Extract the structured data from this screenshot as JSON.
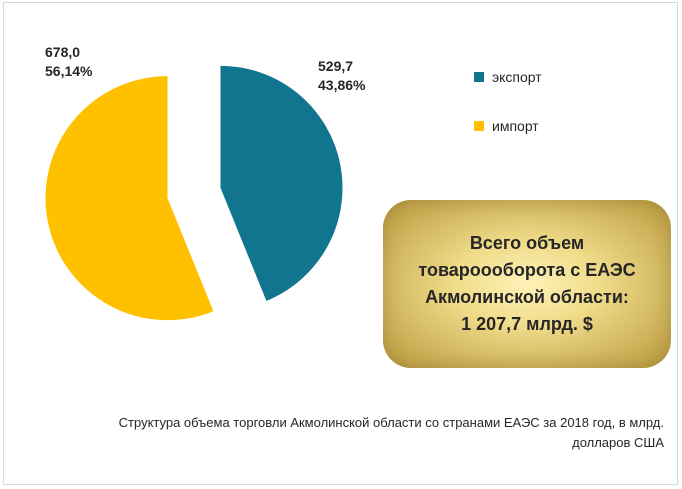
{
  "chart_data": {
    "type": "pie",
    "slices": [
      {
        "label": "экспорт",
        "value": 529.7,
        "value_text": "529,7",
        "percent_text": "43,86%",
        "color": "#12758f"
      },
      {
        "label": "импорт",
        "value": 678.0,
        "value_text": "678,0",
        "percent_text": "56,14%",
        "color": "#ffc000"
      }
    ],
    "legend_position": "right",
    "caption_line1": "Структура  объема торговли Акмолинской области со странами ЕАЭС за 2018 год, в млрд.",
    "caption_line2": "долларов США"
  },
  "total_box": {
    "line1": "Всего объем",
    "line2": "товароооборота  с ЕАЭС",
    "line3": "Акмолинской области:",
    "line4": "1 207,7 млрд. $"
  }
}
